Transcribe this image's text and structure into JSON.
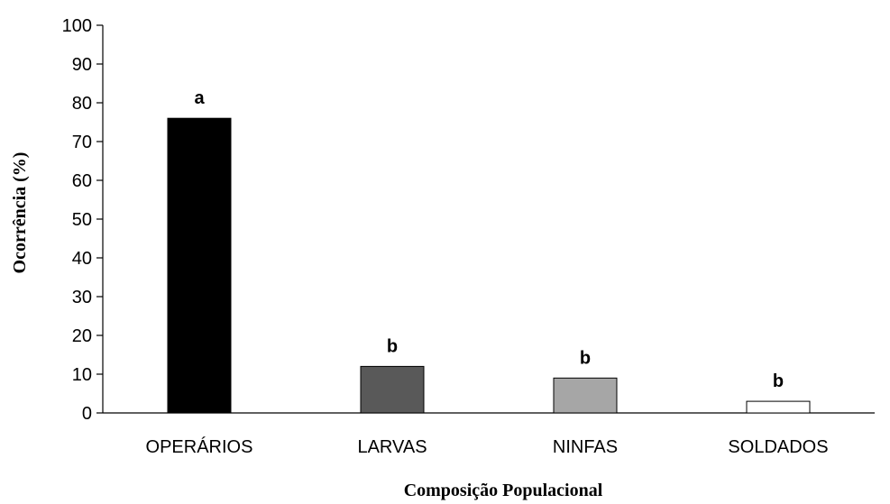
{
  "chart_data": {
    "type": "bar",
    "title": "",
    "xlabel": "Composição Populacional",
    "ylabel": "Ocorrência (%)",
    "ylim": [
      0,
      100
    ],
    "yticks": [
      0,
      10,
      20,
      30,
      40,
      50,
      60,
      70,
      80,
      90,
      100
    ],
    "categories": [
      "OPERÁRIOS",
      "LARVAS",
      "NINFAS",
      "SOLDADOS"
    ],
    "values": [
      76,
      12,
      9,
      3
    ],
    "data_labels": [
      "a",
      "b",
      "b",
      "b"
    ],
    "colors": [
      "#000000",
      "#595959",
      "#a6a6a6",
      "#ffffff"
    ],
    "grid": false,
    "legend": "none"
  }
}
